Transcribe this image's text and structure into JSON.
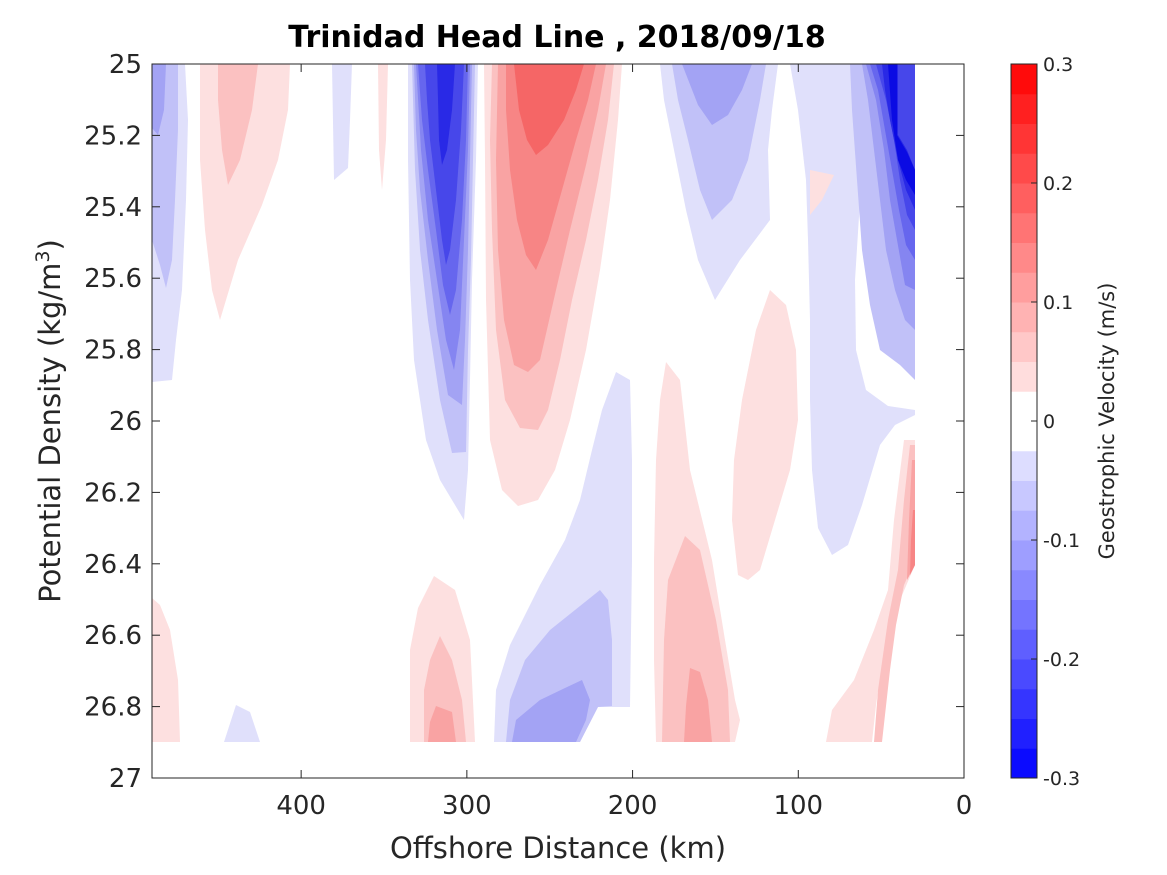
{
  "chart_data": {
    "type": "heatmap",
    "subtype": "filled-contour",
    "title": "Trinidad Head Line , 2018/09/18",
    "xlabel": "Offshore Distance (km)",
    "ylabel_main": "Potential Density (kg/m",
    "ylabel_sup": "3",
    "ylabel_close": ")",
    "xlim": [
      490,
      0
    ],
    "x_reversed": true,
    "ylim": [
      25,
      27
    ],
    "y_reversed": true,
    "x_ticks": [
      400,
      300,
      200,
      100,
      0
    ],
    "x_tick_labels": [
      "400",
      "300",
      "200",
      "100",
      "0"
    ],
    "y_ticks": [
      25,
      25.2,
      25.4,
      25.6,
      25.8,
      26,
      26.2,
      26.4,
      26.6,
      26.8,
      27
    ],
    "y_tick_labels": [
      "25",
      "25.2",
      "25.4",
      "25.6",
      "25.8",
      "26",
      "26.2",
      "26.4",
      "26.6",
      "26.8",
      "27"
    ],
    "grid": false,
    "colorbar": {
      "label": "Geostrophic Velocity (m/s)",
      "range": [
        -0.3,
        0.3
      ],
      "ticks": [
        0.3,
        0.2,
        0.1,
        0,
        -0.1,
        -0.2,
        -0.3
      ],
      "tick_labels": [
        "0.3",
        "0.2",
        "0.1",
        "0",
        "-0.1",
        "-0.2",
        "-0.3"
      ],
      "levels": 24,
      "colormap": "blue-white-red diverging",
      "min_color": "#0000ff",
      "zero_color": "#ffffff",
      "max_color": "#ff0000"
    },
    "features": [
      {
        "x_center": 485,
        "y_range": [
          25.0,
          25.9
        ],
        "peak_velocity": -0.05
      },
      {
        "x_center": 440,
        "y_range": [
          25.0,
          25.7
        ],
        "peak_velocity": 0.025
      },
      {
        "x_center": 375,
        "y_range": [
          25.0,
          25.3
        ],
        "peak_velocity": -0.012
      },
      {
        "x_center": 355,
        "y_range": [
          25.0,
          25.35
        ],
        "peak_velocity": 0.012
      },
      {
        "x_center": 310,
        "y_range": [
          25.0,
          26.25
        ],
        "peak_velocity": -0.2
      },
      {
        "x_center": 262,
        "y_range": [
          25.0,
          26.2
        ],
        "peak_velocity": 0.16
      },
      {
        "x_center": 152,
        "y_range": [
          25.0,
          25.7
        ],
        "peak_velocity": -0.08
      },
      {
        "x_center": 40,
        "y_range": [
          25.0,
          26.4
        ],
        "peak_velocity": -0.28
      },
      {
        "x_center": 115,
        "y_range": [
          25.65,
          26.45
        ],
        "peak_velocity": 0.025
      },
      {
        "x_center": 200,
        "y_range": [
          25.85,
          26.8
        ],
        "peak_velocity": -0.012
      },
      {
        "x_center": 187,
        "y_range": [
          25.85,
          26.75
        ],
        "peak_velocity": 0.012
      },
      {
        "x_center": 165,
        "y_range": [
          26.3,
          26.9
        ],
        "peak_velocity": 0.05
      },
      {
        "x_center": 240,
        "y_range": [
          26.4,
          26.9
        ],
        "peak_velocity": -0.08
      },
      {
        "x_center": 310,
        "y_range": [
          26.4,
          26.9
        ],
        "peak_velocity": 0.05
      },
      {
        "x_center": 480,
        "y_range": [
          26.5,
          26.9
        ],
        "peak_velocity": 0.025
      },
      {
        "x_center": 440,
        "y_range": [
          26.8,
          26.9
        ],
        "peak_velocity": -0.012
      },
      {
        "x_center": 45,
        "y_range": [
          26.05,
          26.9
        ],
        "peak_velocity": 0.08
      }
    ]
  }
}
